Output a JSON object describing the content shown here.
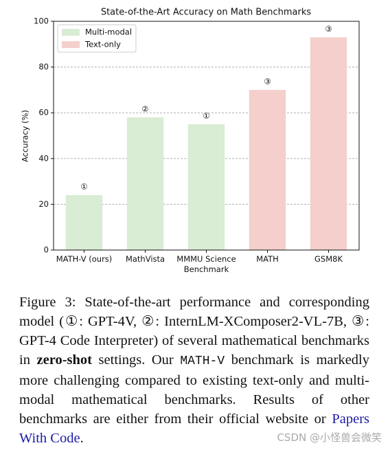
{
  "chart_data": {
    "type": "bar",
    "title": "State-of-the-Art Accuracy on Math Benchmarks",
    "y_label": "Accuracy (%)",
    "categories": [
      "MATH-V (ours)",
      "MathVista",
      "MMMU Science\nBenchmark",
      "MATH",
      "GSM8K"
    ],
    "series": [
      {
        "name": "Multi-modal",
        "color": "#d9ecd4",
        "values": [
          24,
          58,
          55,
          null,
          null
        ]
      },
      {
        "name": "Text-only",
        "color": "#f4cfcb",
        "values": [
          null,
          null,
          null,
          70,
          93
        ]
      }
    ],
    "annotations": [
      "①",
      "②",
      "①",
      "③",
      "③"
    ],
    "ylim": [
      0,
      100
    ],
    "yticks": [
      0,
      20,
      40,
      60,
      80,
      100
    ],
    "grid": true,
    "legend": "upper left"
  },
  "caption": [
    {
      "style": "plain",
      "text": "Figure 3: State-of-the-art performance and corresponding model (①: GPT-4V, ②: InternLM-XComposer2-VL-7B, ③: GPT-4 Code Interpreter) of several mathematical benchmarks in "
    },
    {
      "style": "bold",
      "text": "zero-shot"
    },
    {
      "style": "plain",
      "text": " settings. Our "
    },
    {
      "style": "mono",
      "text": "MATH-V"
    },
    {
      "style": "plain",
      "text": " benchmark is markedly more challenging compared to existing text-only and multi-modal mathematical benchmarks. Results of other benchmarks are either from their official website or "
    },
    {
      "style": "link",
      "text": "Papers With Code"
    },
    {
      "style": "plain",
      "text": "."
    }
  ],
  "watermark": "CSDN @小怪兽会微笑"
}
